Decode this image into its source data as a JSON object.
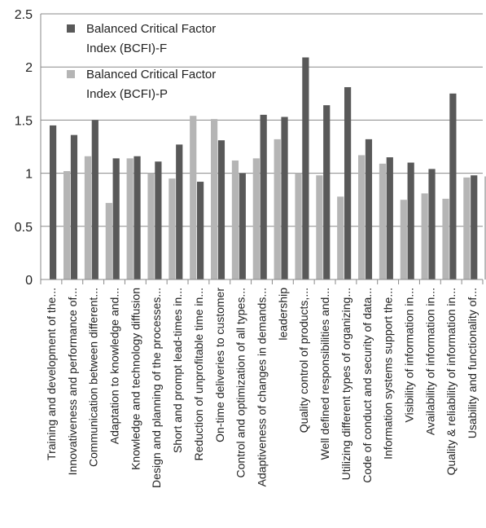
{
  "chart_data": {
    "type": "bar",
    "title": "",
    "xlabel": "",
    "ylabel": "",
    "ylim": [
      0,
      2.5
    ],
    "yticks": [
      "0",
      "0.5",
      "1",
      "1.5",
      "2",
      "2.5"
    ],
    "grid": "horizontal",
    "legend_position": "top-left",
    "categories": [
      "Training and development of the...",
      "Innovativeness and performance of...",
      "Communication between  different...",
      "Adaptation to knowledge and...",
      "Knowledge and technology diffusion",
      "Design and planning of the processes...",
      "Short and prompt lead-times in...",
      "Reduction of unprofitable time in...",
      "On-time deliveries to customer",
      "Control and optimization of all types...",
      "Adaptiveness of changes in demands...",
      "leadership",
      "Quality control of products,...",
      "Well defined responsibilities and...",
      "Utilizing different types of organizing...",
      "Code of conduct and security of data...",
      "Information systems support the...",
      "Visibility of information in...",
      "Availability of information in...",
      "Quality & reliability of information in...",
      "Usability and functionality of..."
    ],
    "series": [
      {
        "name": "Balanced Critical Factor Index (BCFI)-F",
        "legend_lines": [
          "Balanced Critical Factor",
          "Index (BCFI)-F"
        ],
        "color": "#595959",
        "values": [
          1.45,
          1.36,
          1.5,
          1.14,
          1.16,
          1.11,
          1.27,
          0.92,
          1.31,
          1.0,
          1.55,
          1.53,
          2.09,
          1.64,
          1.81,
          1.32,
          1.15,
          1.1,
          1.04,
          1.75,
          0.98
        ]
      },
      {
        "name": "Balanced Critical Factor Index (BCFI)-P",
        "legend_lines": [
          "Balanced Critical Factor",
          "Index (BCFI)-P"
        ],
        "color": "#b5b5b5",
        "values": [
          1.02,
          1.16,
          0.72,
          1.14,
          1.0,
          0.95,
          1.54,
          1.51,
          1.12,
          1.14,
          1.32,
          1.0,
          0.98,
          0.78,
          1.17,
          1.09,
          0.75,
          0.81,
          0.76,
          0.96,
          0.97
        ]
      }
    ]
  }
}
